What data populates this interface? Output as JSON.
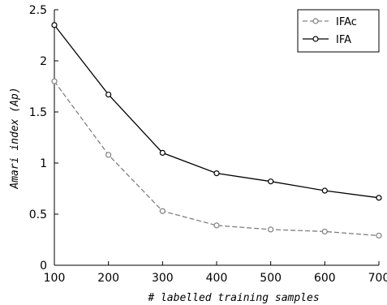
{
  "chart_data": {
    "type": "line",
    "xlabel": "# labelled training samples",
    "ylabel": "Amari index (Ap)",
    "x": [
      100,
      200,
      300,
      400,
      500,
      600,
      700
    ],
    "xlim": [
      100,
      700
    ],
    "ylim": [
      0,
      2.5
    ],
    "xticks": [
      "100",
      "200",
      "300",
      "400",
      "500",
      "600",
      "700"
    ],
    "yticks": [
      "0",
      "0.5",
      "1",
      "1.5",
      "2",
      "2.5"
    ],
    "grid": false,
    "legend_position": "top-right",
    "series": [
      {
        "name": "IFAc",
        "values": [
          1.8,
          1.08,
          0.53,
          0.39,
          0.35,
          0.33,
          0.29
        ],
        "color": "#808080",
        "line_style": "dashed",
        "marker": "circle"
      },
      {
        "name": "IFA",
        "values": [
          2.35,
          1.67,
          1.1,
          0.9,
          0.82,
          0.73,
          0.66
        ],
        "color": "#000000",
        "line_style": "solid",
        "marker": "circle"
      }
    ]
  }
}
